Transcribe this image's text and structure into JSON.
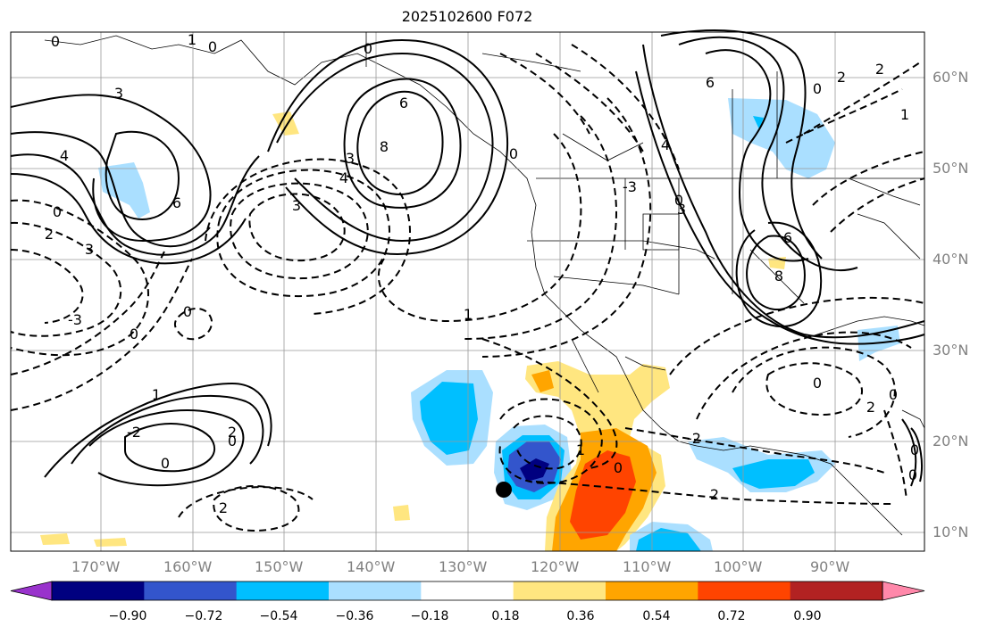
{
  "title": "2025102600 F072",
  "lon_labels": [
    "170°W",
    "160°W",
    "150°W",
    "140°W",
    "130°W",
    "120°W",
    "110°W",
    "100°W",
    "90°W"
  ],
  "lat_labels": [
    "60°N",
    "50°N",
    "40°N",
    "30°N",
    "20°N",
    "10°N"
  ],
  "contour_labels": [
    "0",
    "1",
    "0",
    "0",
    "3",
    "6",
    "8",
    "4",
    "3",
    "6",
    "3",
    "4",
    "0",
    "2",
    "3",
    "0",
    "1",
    "-3",
    "0",
    "1",
    "-2",
    "0",
    "0",
    "2",
    "0",
    "6",
    "4",
    "3",
    "6",
    "8",
    "0",
    "2",
    "-3",
    "0",
    "1",
    "2",
    "1",
    "0",
    "2",
    "-2",
    "0",
    "0",
    "2",
    "0",
    "0",
    "2"
  ],
  "colorbar": {
    "ticks": [
      "−0.90",
      "−0.72",
      "−0.54",
      "−0.36",
      "−0.18",
      "0.18",
      "0.36",
      "0.54",
      "0.72",
      "0.90"
    ],
    "colors": [
      "#9933cc",
      "#000080",
      "#3355cc",
      "#00bfff",
      "#aadfff",
      "#ffffff",
      "#ffe680",
      "#ffa500",
      "#ff4400",
      "#b22222",
      "#ff88aa"
    ]
  },
  "storm_marker": {
    "label": "storm-center"
  }
}
